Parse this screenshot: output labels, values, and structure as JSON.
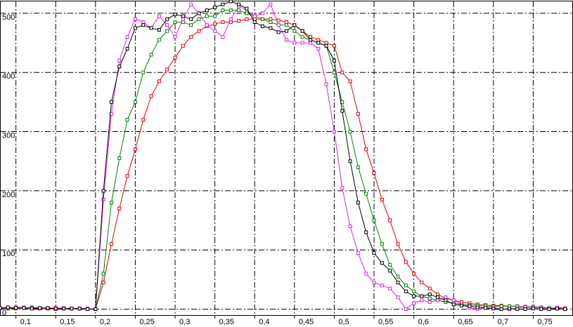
{
  "chart_data": {
    "type": "line",
    "x": [
      0.08,
      0.09,
      0.1,
      0.11,
      0.12,
      0.13,
      0.14,
      0.15,
      0.16,
      0.17,
      0.18,
      0.19,
      0.2,
      0.21,
      0.22,
      0.23,
      0.24,
      0.25,
      0.26,
      0.27,
      0.28,
      0.29,
      0.3,
      0.31,
      0.32,
      0.33,
      0.34,
      0.35,
      0.36,
      0.37,
      0.38,
      0.39,
      0.4,
      0.41,
      0.42,
      0.43,
      0.44,
      0.45,
      0.46,
      0.47,
      0.48,
      0.49,
      0.5,
      0.51,
      0.52,
      0.53,
      0.54,
      0.55,
      0.56,
      0.57,
      0.58,
      0.59,
      0.6,
      0.61,
      0.62,
      0.63,
      0.64,
      0.65,
      0.66,
      0.67,
      0.68,
      0.69,
      0.7,
      0.71,
      0.72,
      0.73,
      0.74,
      0.75,
      0.76,
      0.77,
      0.78,
      0.79
    ],
    "series": [
      {
        "color": "#e00000",
        "values": [
          2,
          1,
          1,
          2,
          1,
          1,
          1,
          0,
          1,
          1,
          1,
          1,
          0,
          45,
          110,
          170,
          225,
          270,
          320,
          360,
          385,
          405,
          425,
          445,
          460,
          470,
          478,
          482,
          485,
          485,
          487,
          490,
          490,
          490,
          490,
          488,
          485,
          480,
          470,
          460,
          455,
          450,
          445,
          400,
          385,
          330,
          270,
          230,
          185,
          150,
          110,
          80,
          60,
          45,
          35,
          25,
          18,
          15,
          12,
          10,
          8,
          7,
          6,
          6,
          5,
          5,
          4,
          4,
          3,
          2,
          2,
          2
        ]
      },
      {
        "color": "#008000",
        "values": [
          1,
          1,
          2,
          2,
          3,
          2,
          2,
          1,
          1,
          1,
          1,
          1,
          0,
          60,
          180,
          255,
          320,
          350,
          400,
          430,
          455,
          470,
          485,
          485,
          480,
          490,
          495,
          495,
          505,
          505,
          505,
          500,
          495,
          490,
          485,
          480,
          480,
          470,
          460,
          455,
          450,
          445,
          400,
          350,
          300,
          240,
          195,
          150,
          110,
          75,
          55,
          40,
          30,
          22,
          18,
          15,
          12,
          10,
          8,
          7,
          6,
          5,
          5,
          5,
          5,
          5,
          4,
          4,
          3,
          2,
          1,
          0
        ]
      },
      {
        "color": "#e020e0",
        "values": [
          1,
          2,
          3,
          3,
          2,
          1,
          2,
          2,
          2,
          1,
          1,
          1,
          0,
          185,
          330,
          420,
          460,
          490,
          485,
          475,
          495,
          480,
          460,
          490,
          515,
          500,
          480,
          470,
          460,
          490,
          512,
          505,
          495,
          500,
          515,
          480,
          455,
          450,
          450,
          450,
          440,
          380,
          300,
          205,
          140,
          95,
          60,
          45,
          40,
          35,
          20,
          0,
          10,
          15,
          12,
          15,
          20,
          15,
          8,
          2,
          0,
          2,
          3,
          0,
          0,
          2,
          3,
          3,
          2,
          0,
          3,
          2
        ]
      },
      {
        "color": "#000000",
        "values": [
          2,
          3,
          2,
          2,
          1,
          2,
          2,
          1,
          1,
          1,
          1,
          0,
          0,
          200,
          350,
          410,
          440,
          475,
          480,
          475,
          472,
          490,
          498,
          495,
          490,
          500,
          505,
          510,
          515,
          520,
          515,
          508,
          485,
          478,
          475,
          468,
          470,
          480,
          470,
          455,
          450,
          445,
          420,
          335,
          250,
          180,
          130,
          95,
          78,
          65,
          45,
          30,
          22,
          22,
          25,
          20,
          15,
          8,
          6,
          5,
          3,
          2,
          1,
          0,
          1,
          0,
          0,
          1,
          0,
          0,
          1,
          0
        ]
      }
    ],
    "xlim": [
      0.08,
      0.8
    ],
    "ylim": [
      -10,
      520
    ],
    "xticks": [
      {
        "value": 0.1,
        "label": "0,1"
      },
      {
        "value": 0.15,
        "label": "0,15"
      },
      {
        "value": 0.2,
        "label": "0,2"
      },
      {
        "value": 0.25,
        "label": "0,25"
      },
      {
        "value": 0.3,
        "label": "0,3"
      },
      {
        "value": 0.35,
        "label": "0,35"
      },
      {
        "value": 0.4,
        "label": "0,4"
      },
      {
        "value": 0.45,
        "label": "0,45"
      },
      {
        "value": 0.5,
        "label": "0,5"
      },
      {
        "value": 0.55,
        "label": "0,55"
      },
      {
        "value": 0.6,
        "label": "0,6"
      },
      {
        "value": 0.65,
        "label": "0,65"
      },
      {
        "value": 0.7,
        "label": "0,7"
      },
      {
        "value": 0.75,
        "label": "0,75"
      }
    ],
    "yticks": [
      0,
      100,
      200,
      300,
      400,
      500
    ],
    "grid": true
  }
}
